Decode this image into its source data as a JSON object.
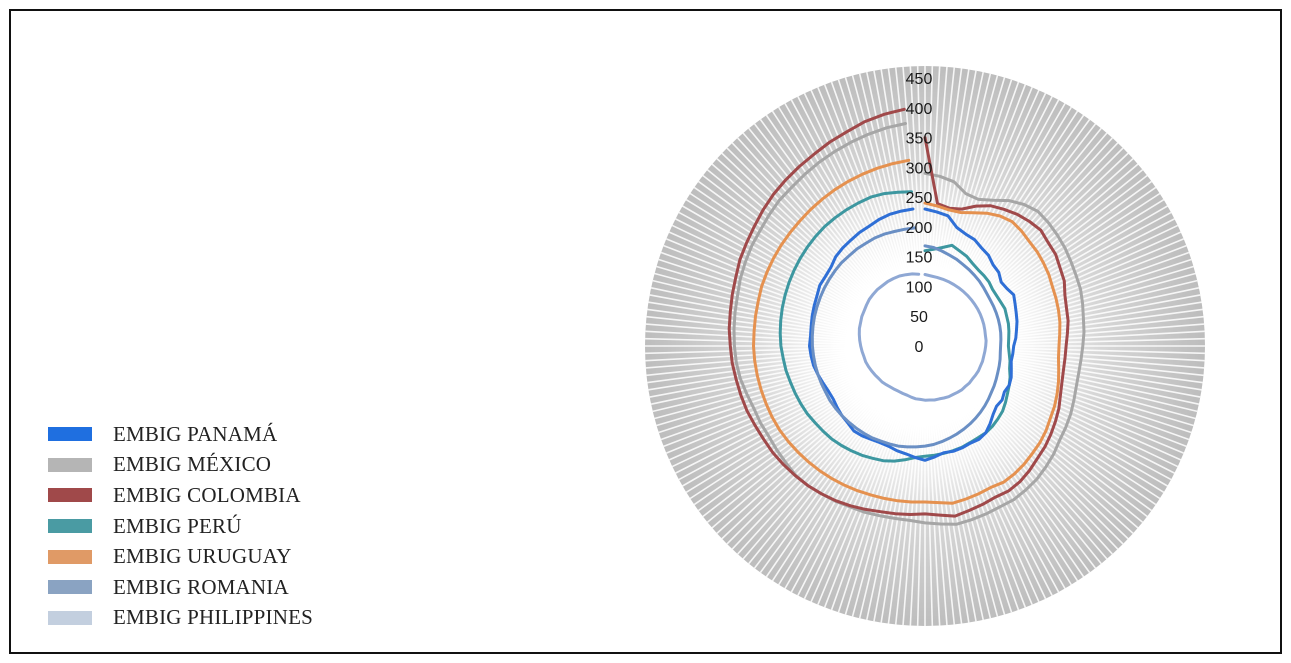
{
  "chart_data": {
    "type": "radar",
    "title": "",
    "radial_axis": {
      "min": 0,
      "max": 450,
      "ticks": [
        0,
        50,
        100,
        150,
        200,
        250,
        300,
        350,
        400,
        450
      ],
      "tick_labels": [
        "0",
        "50",
        "100",
        "150",
        "200",
        "250",
        "300",
        "350",
        "400",
        "450"
      ]
    },
    "points_per_series": 72,
    "legend_position": "bottom-left",
    "series": [
      {
        "name": "EMBIG PANAMÁ",
        "color": "#2f6fd6",
        "values": [
          230,
          226,
          222,
          206,
          200,
          197,
          190,
          186,
          178,
          175,
          167,
          168,
          172,
          167,
          163,
          160,
          156,
          153,
          149,
          148,
          147,
          150,
          154,
          156,
          154,
          158,
          157,
          162,
          170,
          178,
          181,
          180,
          182,
          183,
          182,
          187,
          192,
          188,
          184,
          182,
          179,
          179,
          181,
          184,
          186,
          183,
          182,
          180,
          178,
          179,
          182,
          186,
          190,
          192,
          194,
          193,
          194,
          196,
          198,
          200,
          204,
          204,
          206,
          212,
          215,
          217,
          220,
          222,
          226,
          229,
          230,
          231
        ]
      },
      {
        "name": "EMBIG MÉXICO",
        "color": "#a6a6a6",
        "values": [
          290,
          286,
          280,
          265,
          262,
          270,
          282,
          290,
          295,
          293,
          290,
          287,
          283,
          280,
          278,
          274,
          270,
          268,
          265,
          263,
          262,
          263,
          266,
          270,
          273,
          276,
          282,
          287,
          292,
          295,
          298,
          298,
          300,
          302,
          304,
          300,
          297,
          294,
          294,
          295,
          297,
          298,
          301,
          303,
          306,
          307,
          305,
          304,
          303,
          305,
          306,
          310,
          315,
          318,
          320,
          322,
          324,
          326,
          330,
          333,
          336,
          338,
          342,
          346,
          348,
          352,
          356,
          360,
          364,
          368,
          372,
          375
        ]
      },
      {
        "name": "EMBIG COLOMBIA",
        "color": "#a0494a",
        "values": [
          350,
          240,
          235,
          238,
          250,
          260,
          265,
          270,
          273,
          275,
          270,
          268,
          262,
          258,
          250,
          246,
          244,
          240,
          237,
          236,
          236,
          238,
          242,
          248,
          253,
          258,
          263,
          267,
          273,
          278,
          281,
          280,
          283,
          286,
          290,
          285,
          282,
          284,
          286,
          288,
          292,
          296,
          300,
          303,
          306,
          308,
          310,
          312,
          313,
          315,
          318,
          320,
          322,
          325,
          327,
          330,
          332,
          335,
          338,
          343,
          346,
          350,
          355,
          360,
          364,
          368,
          372,
          378,
          383,
          390,
          395,
          399
        ]
      },
      {
        "name": "EMBIG PERÚ",
        "color": "#3d97a0",
        "values": [
          160,
          163,
          168,
          175,
          170,
          166,
          160,
          156,
          154,
          152,
          148,
          147,
          147,
          148,
          146,
          145,
          143,
          141,
          140,
          142,
          145,
          147,
          152,
          156,
          160,
          165,
          170,
          173,
          176,
          178,
          178,
          179,
          181,
          182,
          183,
          184,
          185,
          188,
          194,
          200,
          205,
          208,
          212,
          215,
          218,
          221,
          223,
          225,
          228,
          230,
          232,
          234,
          237,
          239,
          242,
          244,
          246,
          248,
          250,
          252,
          254,
          256,
          258,
          260,
          262,
          263,
          264,
          265,
          266,
          265,
          262,
          260
        ]
      },
      {
        "name": "EMBIG URUGUAY",
        "color": "#e5914f",
        "values": [
          240,
          236,
          232,
          232,
          238,
          246,
          252,
          255,
          252,
          248,
          246,
          243,
          240,
          236,
          234,
          232,
          230,
          227,
          225,
          225,
          228,
          232,
          236,
          240,
          243,
          248,
          252,
          255,
          259,
          262,
          264,
          262,
          264,
          266,
          268,
          264,
          262,
          263,
          264,
          265,
          266,
          268,
          270,
          272,
          274,
          276,
          278,
          280,
          282,
          283,
          284,
          285,
          286,
          287,
          288,
          288,
          289,
          290,
          292,
          293,
          294,
          295,
          296,
          297,
          299,
          301,
          303,
          305,
          307,
          309,
          311,
          313
        ]
      },
      {
        "name": "EMBIG ROMANIA",
        "color": "#6a8fc4",
        "values": [
          168,
          166,
          162,
          158,
          155,
          151,
          148,
          145,
          142,
          139,
          136,
          134,
          133,
          132,
          131,
          130,
          129,
          128,
          127,
          127,
          128,
          129,
          130,
          132,
          134,
          136,
          139,
          142,
          145,
          148,
          151,
          154,
          157,
          160,
          163,
          166,
          168,
          170,
          172,
          174,
          175,
          176,
          178,
          179,
          180,
          181,
          182,
          183,
          184,
          184,
          185,
          186,
          187,
          188,
          189,
          190,
          191,
          192,
          193,
          194,
          195,
          196,
          197,
          198,
          198,
          199,
          199,
          200,
          200,
          199,
          199,
          199
        ]
      },
      {
        "name": "EMBIG PHILIPPINES",
        "color": "#8fa8d4",
        "values": [
          120,
          118,
          117,
          116,
          115,
          114,
          113,
          112,
          111,
          110,
          109,
          108,
          107,
          106,
          105,
          104,
          103,
          103,
          102,
          101,
          100,
          100,
          99,
          99,
          98,
          97,
          97,
          96,
          96,
          95,
          94,
          94,
          93,
          92,
          92,
          91,
          91,
          90,
          90,
          89,
          88,
          88,
          88,
          89,
          90,
          92,
          94,
          95,
          97,
          99,
          101,
          103,
          104,
          106,
          108,
          110,
          112,
          114,
          115,
          117,
          118,
          120,
          122,
          123,
          124,
          124,
          125,
          125,
          125,
          124,
          123,
          121
        ]
      }
    ]
  }
}
